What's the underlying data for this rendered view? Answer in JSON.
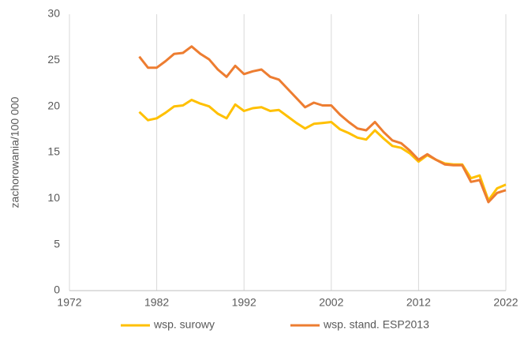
{
  "chart_data": {
    "type": "line",
    "y_label": "zachorowania/100 000",
    "x": [
      1980,
      1981,
      1982,
      1983,
      1984,
      1985,
      1986,
      1987,
      1988,
      1989,
      1990,
      1991,
      1992,
      1993,
      1994,
      1995,
      1996,
      1997,
      1998,
      1999,
      2000,
      2001,
      2002,
      2003,
      2004,
      2005,
      2006,
      2007,
      2008,
      2009,
      2010,
      2011,
      2012,
      2013,
      2014,
      2015,
      2016,
      2017,
      2018,
      2019,
      2020,
      2021,
      2022
    ],
    "series": [
      {
        "name": "wsp. surowy",
        "color": "#ffc000",
        "values": [
          19.4,
          18.5,
          18.7,
          19.3,
          20.0,
          20.1,
          20.7,
          20.3,
          20.0,
          19.2,
          18.7,
          20.2,
          19.5,
          19.8,
          19.9,
          19.5,
          19.6,
          18.9,
          18.2,
          17.6,
          18.1,
          18.2,
          18.3,
          17.5,
          17.1,
          16.6,
          16.4,
          17.4,
          16.5,
          15.7,
          15.5,
          14.9,
          14.0,
          14.7,
          14.2,
          13.8,
          13.7,
          13.7,
          12.2,
          12.5,
          9.8,
          11.1,
          11.5
        ]
      },
      {
        "name": "wsp. stand. ESP2013",
        "color": "#ed7d31",
        "values": [
          25.4,
          24.2,
          24.2,
          24.9,
          25.7,
          25.8,
          26.5,
          25.7,
          25.1,
          24.0,
          23.2,
          24.4,
          23.5,
          23.8,
          24.0,
          23.2,
          22.9,
          21.9,
          20.9,
          19.9,
          20.4,
          20.1,
          20.1,
          19.1,
          18.3,
          17.6,
          17.4,
          18.3,
          17.2,
          16.3,
          16.0,
          15.2,
          14.2,
          14.8,
          14.2,
          13.7,
          13.6,
          13.6,
          11.8,
          12.0,
          9.6,
          10.6,
          10.9
        ]
      }
    ],
    "xlim": [
      1972,
      2022
    ],
    "xticks": [
      1972,
      1982,
      1992,
      2002,
      2012,
      2022
    ],
    "ylim": [
      0,
      30
    ],
    "yticks": [
      0,
      5,
      10,
      15,
      20,
      25,
      30
    ],
    "grid": "x",
    "legend": "bottom"
  }
}
